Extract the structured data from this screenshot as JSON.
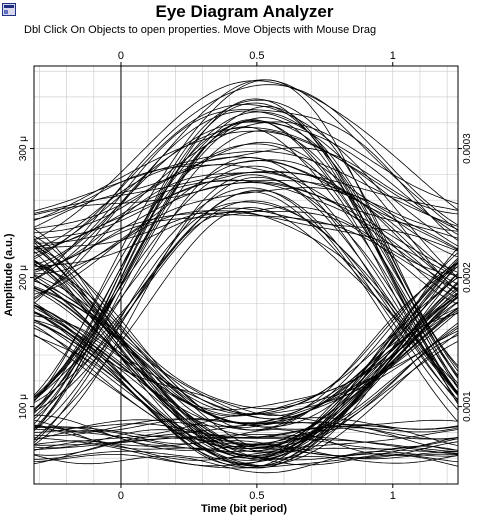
{
  "window": {
    "title": "Eye Diagram Analyzer",
    "hint": "Dbl Click On Objects to open properties.  Move Objects with Mouse Drag"
  },
  "chart_data": {
    "type": "line",
    "title": "Eye Diagram Analyzer",
    "xlabel": "Time (bit period)",
    "ylabel": "Amplitude (a.u.)",
    "xlim": [
      -0.32,
      1.24
    ],
    "ylim": [
      4e-05,
      0.000364
    ],
    "x_ticks_top": [
      {
        "v": 0,
        "label": "0"
      },
      {
        "v": 0.5,
        "label": "0.5"
      },
      {
        "v": 1,
        "label": "1"
      }
    ],
    "x_ticks_bottom": [
      {
        "v": 0,
        "label": "0"
      },
      {
        "v": 0.5,
        "label": "0.5"
      },
      {
        "v": 1,
        "label": "1"
      }
    ],
    "y_ticks_left": [
      {
        "v": 0.0001,
        "label": "100 μ"
      },
      {
        "v": 0.0002,
        "label": "200 μ"
      },
      {
        "v": 0.0003,
        "label": "300 μ"
      }
    ],
    "y_ticks_right": [
      {
        "v": 0.0001,
        "label": "0.0001"
      },
      {
        "v": 0.0002,
        "label": "0.0002"
      },
      {
        "v": 0.0003,
        "label": "0.0003"
      }
    ],
    "grid": true,
    "eye": {
      "one_level_range": [
        0.000248,
        0.000354
      ],
      "zero_level_range": [
        5.2e-05,
        9.6e-05
      ],
      "edge_one_range": [
        0.000165,
        0.00025
      ],
      "crossing_time": [
        0.0,
        1.0
      ],
      "trace_count": 120
    },
    "colors": {
      "trace": "#000000",
      "grid": "#c8c8c8",
      "background": "#ffffff"
    }
  }
}
